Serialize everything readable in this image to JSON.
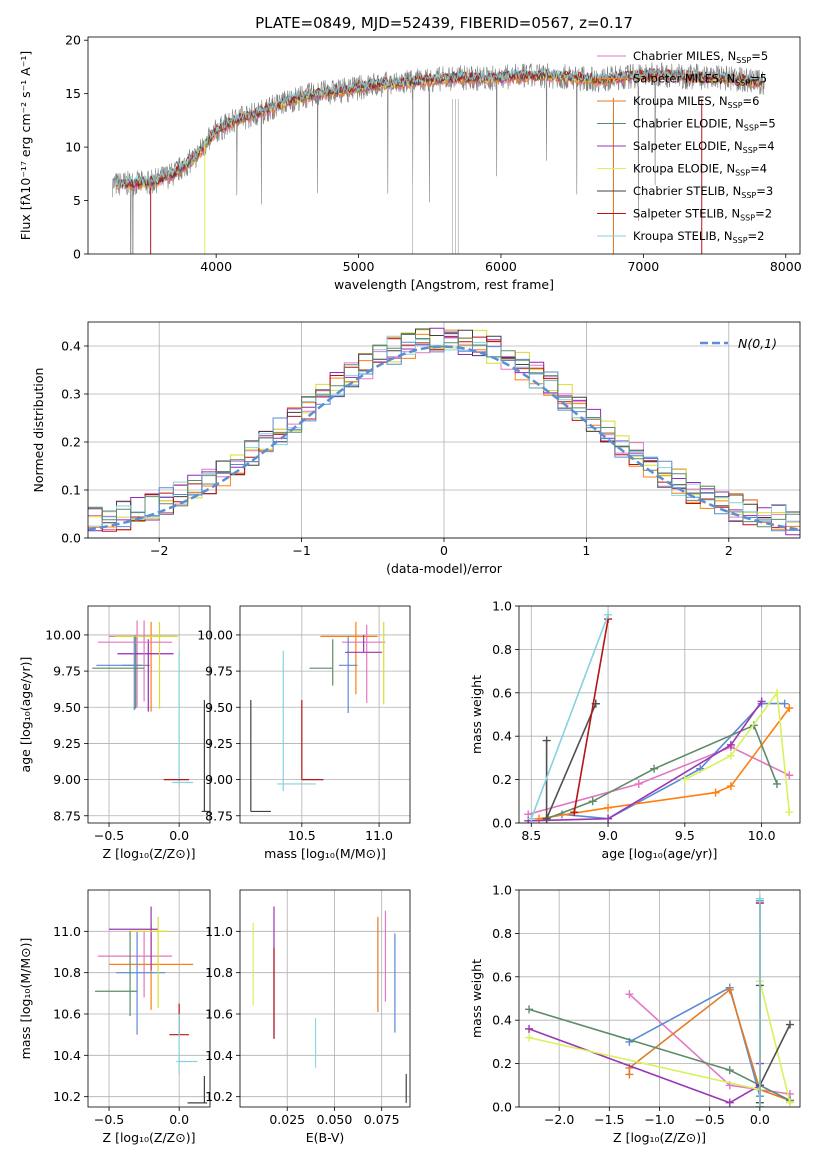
{
  "figure": {
    "title": "PLATE=0849, MJD=52439, FIBERID=0567, z=0.17"
  },
  "colors": {
    "data": "#7f7f7f",
    "normal": "#5b8fd4",
    "series": [
      "#e377c2",
      "#7f7f7f",
      "#ff7f0e",
      "#1f8c4a",
      "#9427bd",
      "#dbdb30",
      "#404040",
      "#b51515",
      "#86d2de",
      "#5b8ad4",
      "#e07b2a",
      "#5e8c6a",
      "#9a38b4",
      "#d9f15a",
      "#505050",
      "#b51a1a",
      "#8ad8de"
    ]
  },
  "chart_data": [
    {
      "type": "line",
      "id": "spectrum",
      "title": "PLATE=0849, MJD=52439, FIBERID=0567, z=0.17",
      "xlabel": "wavelength [Angstrom, rest frame]",
      "ylabel": "Flux [fλ10⁻¹⁷ erg cm⁻² s⁻¹ A⁻¹]",
      "xlim": [
        3100,
        8100
      ],
      "ylim": [
        0,
        20.3
      ],
      "xticks": [
        4000,
        5000,
        6000,
        7000,
        8000
      ],
      "yticks": [
        0,
        5,
        10,
        15,
        20
      ],
      "grid": false,
      "legend_position": "right",
      "continuum": {
        "x": [
          3270,
          3400,
          3550,
          3700,
          3850,
          4000,
          4150,
          4300,
          4500,
          4700,
          4900,
          5100,
          5300,
          5500,
          5700,
          5900,
          6100,
          6300,
          6500,
          6700,
          6900,
          7100,
          7300,
          7500,
          7700,
          7850
        ],
        "y": [
          6.5,
          6.6,
          6.7,
          7.5,
          9.0,
          11.5,
          12.6,
          13.2,
          14.3,
          15.0,
          15.3,
          15.8,
          16.0,
          16.3,
          16.5,
          16.4,
          16.6,
          16.7,
          16.5,
          16.3,
          16.6,
          16.8,
          16.6,
          16.5,
          16.3,
          16.0
        ]
      },
      "series": [
        {
          "name": "Chabrier MILES, N_SSP=5",
          "display": "Chabrier MILES, NSSP=5"
        },
        {
          "name": "Salpeter MILES, N_SSP=5",
          "display": "Salpeter MILES, NSSP=5"
        },
        {
          "name": "Kroupa MILES, N_SSP=6",
          "display": "Kroupa MILES, NSSP=6"
        },
        {
          "name": "Chabrier ELODIE, N_SSP=5",
          "display": "Chabrier ELODIE, NSSP=5"
        },
        {
          "name": "Salpeter ELODIE, N_SSP=4",
          "display": "Salpeter ELODIE, NSSP=4"
        },
        {
          "name": "Kroupa ELODIE, N_SSP=4",
          "display": "Kroupa ELODIE, NSSP=4"
        },
        {
          "name": "Chabrier STELIB, N_SSP=3",
          "display": "Chabrier STELIB, NSSP=3"
        },
        {
          "name": "Salpeter STELIB, N_SSP=2",
          "display": "Salpeter STELIB, NSSP=2"
        },
        {
          "name": "Kroupa STELIB, N_SSP=2",
          "display": "Kroupa STELIB, NSSP=2"
        }
      ]
    },
    {
      "type": "bar",
      "id": "residuals",
      "xlabel": "(data-model)/error",
      "ylabel": "Normed distribution",
      "xlim": [
        -2.5,
        2.5
      ],
      "ylim": [
        0,
        0.45
      ],
      "xticks": [
        -2,
        -1,
        0,
        1,
        2
      ],
      "yticks": [
        0.0,
        0.1,
        0.2,
        0.3,
        0.4
      ],
      "grid": true,
      "legend_position": "top-right",
      "legend": "N(0,1)",
      "bin_width": 0.1,
      "bins": [
        -2.5,
        2.5
      ]
    },
    {
      "type": "scatter",
      "id": "age_vs_Z",
      "xlabel": "Z [log₁₀(Z/Z⊙)]",
      "ylabel": "age  [log₁₀(age/yr)]",
      "xlim": [
        -0.65,
        0.22
      ],
      "ylim": [
        8.7,
        10.2
      ],
      "xticks": [
        -0.5,
        0.0
      ],
      "yticks": [
        8.75,
        9.0,
        9.25,
        9.5,
        9.75,
        10.0
      ],
      "grid": true,
      "points": [
        {
          "x": -0.3,
          "y": 9.99,
          "xerr": [
            0.2,
            0.1
          ],
          "yerr": [
            0.49,
            0.11
          ],
          "c": 0
        },
        {
          "x": -0.31,
          "y": 9.79,
          "xerr": [
            0.1,
            0.1
          ],
          "yerr": [
            0.3,
            0.21
          ],
          "c": 11
        },
        {
          "x": -0.2,
          "y": 9.99,
          "xerr": [
            0.25,
            0.18
          ],
          "yerr": [
            0.52,
            0.1
          ],
          "c": 2
        },
        {
          "x": -0.22,
          "y": 9.87,
          "xerr": [
            0.22,
            0.18
          ],
          "yerr": [
            0.4,
            0.1
          ],
          "c": 4
        },
        {
          "x": -0.14,
          "y": 9.99,
          "xerr": [
            0.32,
            0.13
          ],
          "yerr": [
            0.5,
            0.1
          ],
          "c": 5
        },
        {
          "x": -0.25,
          "y": 9.95,
          "xerr": [
            0.33,
            0.2
          ],
          "yerr": [
            0.41,
            0.15
          ],
          "c": 0
        },
        {
          "x": -0.32,
          "y": 9.79,
          "xerr": [
            0.27,
            0.05
          ],
          "yerr": [
            0.31,
            0.2
          ],
          "c": 9
        },
        {
          "x": -0.5,
          "y": 9.77,
          "xerr": [
            0.12,
            0.25
          ],
          "yerr": [
            0.0,
            0.0
          ],
          "c": 11
        },
        {
          "x": 0.0,
          "y": 8.98,
          "xerr": [
            0.05,
            0.1
          ],
          "yerr": [
            0.02,
            0.91
          ],
          "c": 8
        },
        {
          "x": -0.01,
          "y": 9.0,
          "xerr": [
            0.1,
            0.08
          ],
          "yerr": [
            0.0,
            0.0
          ],
          "c": 7
        },
        {
          "x": 0.18,
          "y": 8.78,
          "xerr": [
            0.02,
            0.04
          ],
          "yerr": [
            0.0,
            0.77
          ],
          "c": 6
        }
      ]
    },
    {
      "type": "scatter",
      "id": "age_vs_mass",
      "xlabel": "mass [log₁₀(M/M⊙)]",
      "ylabel": "",
      "xlim": [
        10.1,
        11.2
      ],
      "ylim": [
        8.7,
        10.2
      ],
      "xticks": [
        10.5,
        11.0
      ],
      "yticks": [
        8.75,
        9.0,
        9.25,
        9.5,
        9.75,
        10.0
      ],
      "grid": true,
      "points": [
        {
          "x": 10.85,
          "y": 9.99,
          "xerr": [
            0.23,
            0.14
          ],
          "yerr": [
            0.4,
            0.1
          ],
          "c": 2
        },
        {
          "x": 10.92,
          "y": 9.95,
          "xerr": [
            0.16,
            0.12
          ],
          "yerr": [
            0.42,
            0.12
          ],
          "c": 0
        },
        {
          "x": 10.8,
          "y": 9.79,
          "xerr": [
            0.06,
            0.06
          ],
          "yerr": [
            0.33,
            0.2
          ],
          "c": 9
        },
        {
          "x": 10.9,
          "y": 9.88,
          "xerr": [
            0.12,
            0.12
          ],
          "yerr": [
            0.0,
            0.12
          ],
          "c": 12
        },
        {
          "x": 11.03,
          "y": 9.99,
          "xerr": [
            0.0,
            0.0
          ],
          "yerr": [
            0.47,
            0.1
          ],
          "c": 5
        },
        {
          "x": 10.7,
          "y": 9.77,
          "xerr": [
            0.15,
            0.0
          ],
          "yerr": [
            0.12,
            0.2
          ],
          "c": 11
        },
        {
          "x": 10.5,
          "y": 9.0,
          "xerr": [
            0.0,
            0.14
          ],
          "yerr": [
            0.0,
            0.55
          ],
          "c": 7
        },
        {
          "x": 10.38,
          "y": 8.97,
          "xerr": [
            0.04,
            0.21
          ],
          "yerr": [
            0.05,
            0.92
          ],
          "c": 8
        },
        {
          "x": 10.17,
          "y": 8.78,
          "xerr": [
            0.0,
            0.13
          ],
          "yerr": [
            0.0,
            0.77
          ],
          "c": 6
        }
      ]
    },
    {
      "type": "line",
      "id": "weight_vs_age",
      "xlabel": "age  [log₁₀(age/yr)]",
      "ylabel": "mass weight",
      "xlim": [
        8.42,
        10.25
      ],
      "ylim": [
        0.0,
        1.0
      ],
      "xticks": [
        8.5,
        9.0,
        9.5,
        10.0
      ],
      "yticks": [
        0.0,
        0.2,
        0.4,
        0.6,
        0.8,
        1.0
      ],
      "grid": true,
      "series": [
        {
          "c": 0,
          "x": [
            8.48,
            9.2,
            9.8,
            10.18
          ],
          "y": [
            0.04,
            0.18,
            0.35,
            0.22
          ]
        },
        {
          "c": 9,
          "x": [
            8.7,
            9.0,
            9.6,
            10.0,
            10.15
          ],
          "y": [
            0.04,
            0.02,
            0.25,
            0.55,
            0.55
          ]
        },
        {
          "c": 2,
          "x": [
            8.55,
            9.0,
            9.7,
            9.8,
            10.18
          ],
          "y": [
            0.02,
            0.07,
            0.14,
            0.17,
            0.53
          ]
        },
        {
          "c": 11,
          "x": [
            8.6,
            8.9,
            9.3,
            9.95,
            10.1
          ],
          "y": [
            0.02,
            0.1,
            0.25,
            0.45,
            0.18
          ]
        },
        {
          "c": 12,
          "x": [
            8.48,
            9.0,
            9.8,
            10.0
          ],
          "y": [
            0.01,
            0.02,
            0.36,
            0.56
          ]
        },
        {
          "c": 13,
          "x": [
            9.5,
            9.8,
            10.1,
            10.18
          ],
          "y": [
            0.2,
            0.31,
            0.6,
            0.05
          ]
        },
        {
          "c": 14,
          "x": [
            8.6,
            8.6,
            8.92,
            8.92
          ],
          "y": [
            0.38,
            0.02,
            0.55,
            0.55
          ]
        },
        {
          "c": 7,
          "x": [
            8.78,
            9.0
          ],
          "y": [
            0.05,
            0.94
          ]
        },
        {
          "c": 8,
          "x": [
            8.5,
            9.0
          ],
          "y": [
            0.02,
            0.96
          ]
        }
      ]
    },
    {
      "type": "scatter",
      "id": "mass_vs_Z",
      "xlabel": "Z [log₁₀(Z/Z⊙)]",
      "ylabel": "mass [log₁₀(M/M⊙)]",
      "xlim": [
        -0.65,
        0.22
      ],
      "ylim": [
        10.15,
        11.2
      ],
      "xticks": [
        -0.5,
        0.0
      ],
      "yticks": [
        10.2,
        10.4,
        10.6,
        10.8,
        11.0
      ],
      "grid": true,
      "points": [
        {
          "x": -0.25,
          "y": 10.88,
          "xerr": [
            0.33,
            0.2
          ],
          "yerr": [
            0.2,
            0.12
          ],
          "c": 0
        },
        {
          "x": -0.2,
          "y": 10.84,
          "xerr": [
            0.3,
            0.3
          ],
          "yerr": [
            0.22,
            0.2
          ],
          "c": 2
        },
        {
          "x": -0.3,
          "y": 10.8,
          "xerr": [
            0.15,
            0.2
          ],
          "yerr": [
            0.3,
            0.2
          ],
          "c": 9
        },
        {
          "x": -0.3,
          "y": 11.01,
          "xerr": [
            0.2,
            0.15
          ],
          "yerr": [
            0.0,
            0.0
          ],
          "c": 12
        },
        {
          "x": -0.2,
          "y": 10.95,
          "xerr": [
            0.0,
            0.0
          ],
          "yerr": [
            0.14,
            0.17
          ],
          "c": 12
        },
        {
          "x": -0.15,
          "y": 11.0,
          "xerr": [
            0.2,
            0.08
          ],
          "yerr": [
            0.37,
            0.07
          ],
          "c": 5
        },
        {
          "x": -0.35,
          "y": 10.71,
          "xerr": [
            0.25,
            0.05
          ],
          "yerr": [
            0.12,
            0.29
          ],
          "c": 11
        },
        {
          "x": 0.0,
          "y": 10.5,
          "xerr": [
            0.07,
            0.07
          ],
          "yerr": [
            0.0,
            0.15
          ],
          "c": 7
        },
        {
          "x": 0.0,
          "y": 10.37,
          "xerr": [
            0.02,
            0.13
          ],
          "yerr": [
            0.06,
            0.23
          ],
          "c": 8
        },
        {
          "x": 0.18,
          "y": 10.17,
          "xerr": [
            0.12,
            0.02
          ],
          "yerr": [
            0.0,
            0.13
          ],
          "c": 6
        }
      ]
    },
    {
      "type": "scatter",
      "id": "mass_vs_EBV",
      "xlabel": "E(B-V)",
      "ylabel": "",
      "xlim": [
        0.0,
        0.09
      ],
      "ylim": [
        10.15,
        11.2
      ],
      "xticks": [
        0.025,
        0.05,
        0.075
      ],
      "xticklabels": [
        "0.025",
        "0.050",
        "0.075"
      ],
      "yticks": [
        10.2,
        10.4,
        10.6,
        10.8,
        11.0
      ],
      "grid": true,
      "points": [
        {
          "x": 0.007,
          "y": 10.84,
          "yerr": [
            0.2,
            0.2
          ],
          "c": 13
        },
        {
          "x": 0.018,
          "y": 10.8,
          "yerr": [
            0.32,
            0.32
          ],
          "c": 12
        },
        {
          "x": 0.018,
          "y": 10.7,
          "yerr": [
            0.22,
            0.22
          ],
          "c": 15
        },
        {
          "x": 0.04,
          "y": 10.46,
          "yerr": [
            0.12,
            0.12
          ],
          "c": 16
        },
        {
          "x": 0.073,
          "y": 10.84,
          "yerr": [
            0.23,
            0.23
          ],
          "c": 10
        },
        {
          "x": 0.077,
          "y": 10.88,
          "yerr": [
            0.22,
            0.22
          ],
          "c": 0
        },
        {
          "x": 0.082,
          "y": 10.75,
          "yerr": [
            0.24,
            0.24
          ],
          "c": 9
        },
        {
          "x": 0.088,
          "y": 10.24,
          "yerr": [
            0.07,
            0.07
          ],
          "c": 6
        }
      ]
    },
    {
      "type": "line",
      "id": "weight_vs_Z",
      "xlabel": "Z [log₁₀(Z/Z⊙)]",
      "ylabel": "mass weight",
      "xlim": [
        -2.4,
        0.4
      ],
      "ylim": [
        0.0,
        1.0
      ],
      "xticks": [
        -2.0,
        -1.5,
        -1.0,
        -0.5,
        0.0
      ],
      "yticks": [
        0.0,
        0.2,
        0.4,
        0.6,
        0.8,
        1.0
      ],
      "grid": true,
      "series": [
        {
          "c": 0,
          "x": [
            -1.3,
            -0.3,
            0.3
          ],
          "y": [
            0.52,
            0.1,
            0.06
          ]
        },
        {
          "c": 9,
          "x": [
            -1.3,
            -0.3,
            0.0,
            0.0
          ],
          "y": [
            0.3,
            0.55,
            0.05,
            0.95
          ]
        },
        {
          "c": 10,
          "x": [
            -1.3,
            -1.3,
            -0.3,
            0.0,
            0.3
          ],
          "y": [
            0.15,
            0.18,
            0.54,
            0.08,
            0.03
          ]
        },
        {
          "c": 11,
          "x": [
            -2.3,
            -0.3,
            0.0,
            0.3
          ],
          "y": [
            0.45,
            0.17,
            0.1,
            0.03
          ]
        },
        {
          "c": 12,
          "x": [
            -2.3,
            -0.3,
            0.0,
            0.0
          ],
          "y": [
            0.36,
            0.02,
            0.1,
            0.2
          ]
        },
        {
          "c": 13,
          "x": [
            -2.3,
            0.0,
            0.0,
            0.3
          ],
          "y": [
            0.32,
            0.08,
            0.58,
            0.02
          ]
        },
        {
          "c": 14,
          "x": [
            0.0,
            0.0,
            0.0,
            0.3
          ],
          "y": [
            0.56,
            0.02,
            0.1,
            0.38
          ]
        },
        {
          "c": 7,
          "x": [
            0.0,
            0.0
          ],
          "y": [
            0.0,
            0.94
          ]
        },
        {
          "c": 8,
          "x": [
            0.0,
            0.0
          ],
          "y": [
            0.0,
            0.96
          ]
        }
      ]
    }
  ]
}
